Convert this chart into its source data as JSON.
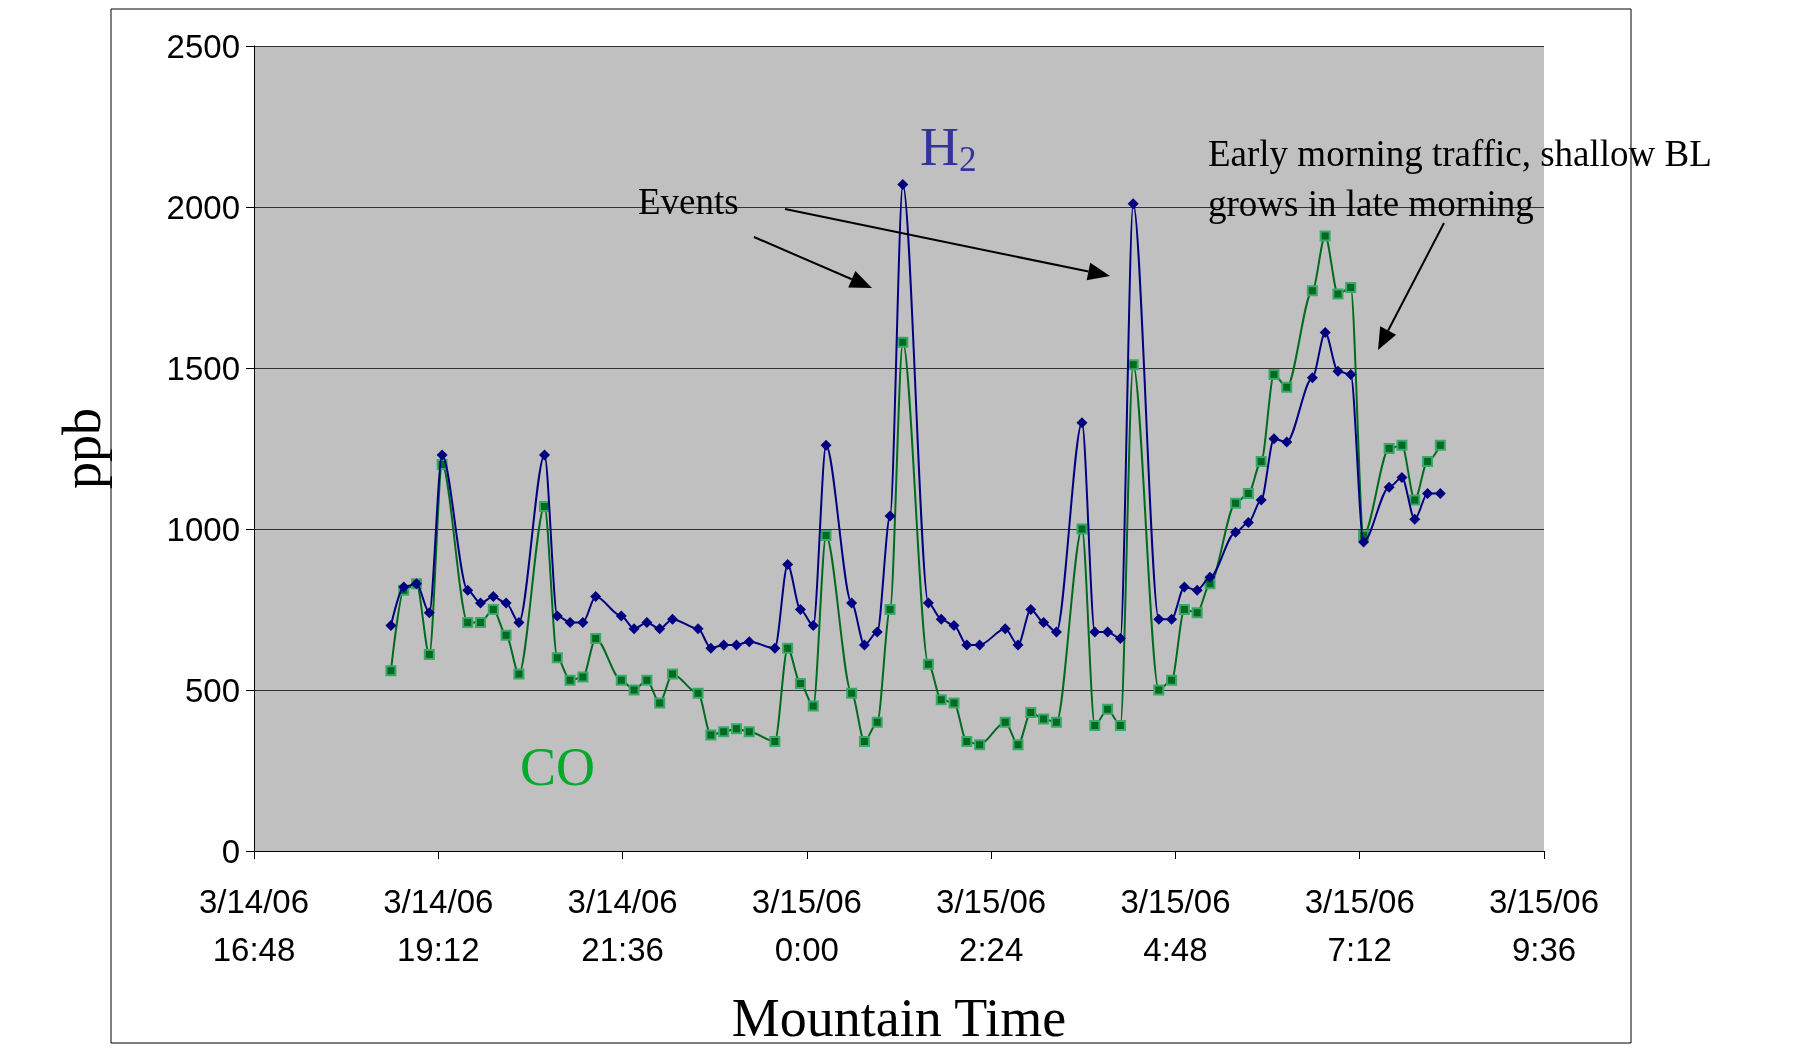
{
  "chart_data": {
    "type": "line",
    "xlabel": "Mountain Time",
    "ylabel": "ppb",
    "annotations": [
      "Events",
      "Early morning traffic, shallow BL grows in late morning"
    ],
    "x": [
      "--03-14T18:35",
      "--03-14T18:45",
      "--03-14T18:55",
      "--03-14T19:05",
      "--03-14T19:15",
      "--03-14T19:35",
      "--03-14T19:45",
      "--03-14T19:55",
      "--03-14T20:05",
      "--03-14T20:15",
      "--03-14T20:35",
      "--03-14T20:45",
      "--03-14T20:55",
      "--03-14T21:05",
      "--03-14T21:15",
      "--03-14T21:35",
      "--03-14T21:45",
      "--03-14T21:55",
      "--03-14T22:05",
      "--03-14T22:15",
      "--03-14T22:35",
      "--03-14T22:45",
      "--03-14T22:55",
      "--03-14T23:05",
      "--03-14T23:15",
      "--03-14T23:35",
      "--03-14T23:45",
      "--03-14T23:55",
      "--03-15T00:05",
      "--03-15T00:15",
      "--03-15T00:35",
      "--03-15T00:45",
      "--03-15T00:55",
      "--03-15T01:05",
      "--03-15T01:15",
      "--03-15T01:35",
      "--03-15T01:45",
      "--03-15T01:55",
      "--03-15T02:05",
      "--03-15T02:15",
      "--03-15T02:35",
      "--03-15T02:45",
      "--03-15T02:55",
      "--03-15T03:05",
      "--03-15T03:15",
      "--03-15T03:35",
      "--03-15T03:45",
      "--03-15T03:55",
      "--03-15T04:05",
      "--03-15T04:15",
      "--03-15T04:35",
      "--03-15T04:45",
      "--03-15T04:55",
      "--03-15T05:05",
      "--03-15T05:15",
      "--03-15T05:35",
      "--03-15T05:45",
      "--03-15T05:55",
      "--03-15T06:05",
      "--03-15T06:15",
      "--03-15T06:35",
      "--03-15T06:45",
      "--03-15T06:55",
      "--03-15T07:05",
      "--03-15T07:15",
      "--03-15T07:35",
      "--03-15T07:45",
      "--03-15T07:55",
      "--03-15T08:05",
      "--03-15T08:15"
    ],
    "series": [
      {
        "name": "H$_{2}$",
        "color": "#000080",
        "marker": "diamond",
        "values": [
          700,
          820,
          830,
          740,
          1230,
          810,
          770,
          790,
          770,
          710,
          1230,
          730,
          710,
          710,
          790,
          730,
          690,
          710,
          690,
          720,
          690,
          630,
          640,
          640,
          650,
          630,
          890,
          750,
          700,
          1260,
          770,
          640,
          680,
          1040,
          2070,
          770,
          720,
          700,
          640,
          640,
          690,
          640,
          750,
          710,
          680,
          1330,
          680,
          680,
          660,
          2010,
          720,
          720,
          820,
          810,
          850,
          990,
          1020,
          1090,
          1280,
          1270,
          1470,
          1610,
          1490,
          1480,
          960,
          1130,
          1160,
          1030,
          1110,
          1110
        ]
      },
      {
        "name": "CO",
        "color": "#006a1e",
        "marker": "square",
        "values": [
          560,
          810,
          830,
          610,
          1200,
          710,
          710,
          750,
          670,
          550,
          1070,
          600,
          530,
          540,
          660,
          530,
          500,
          530,
          460,
          550,
          490,
          360,
          370,
          380,
          370,
          340,
          630,
          520,
          450,
          980,
          490,
          340,
          400,
          750,
          1580,
          580,
          470,
          460,
          340,
          330,
          400,
          330,
          430,
          410,
          400,
          1000,
          390,
          440,
          390,
          1510,
          500,
          530,
          750,
          740,
          830,
          1080,
          1110,
          1210,
          1480,
          1440,
          1740,
          1910,
          1730,
          1750,
          980,
          1250,
          1260,
          1090,
          1210,
          1260
        ]
      }
    ],
    "xlim": [
      "--03-14T16:48",
      "--03-15T09:36"
    ],
    "xticks": [
      {
        "value": "--03-14T16:48",
        "label": "3/14/06\n16:48"
      },
      {
        "value": "--03-14T19:12",
        "label": "3/14/06\n19:12"
      },
      {
        "value": "--03-14T21:36",
        "label": "3/14/06\n21:36"
      },
      {
        "value": "--03-15T00:00",
        "label": "3/15/06\n0:00"
      },
      {
        "value": "--03-15T02:24",
        "label": "3/15/06\n2:24"
      },
      {
        "value": "--03-15T04:48",
        "label": "3/15/06\n4:48"
      },
      {
        "value": "--03-15T07:12",
        "label": "3/15/06\n7:12"
      },
      {
        "value": "--03-15T09:36",
        "label": "3/15/06\n9:36"
      }
    ],
    "ylim": [
      0,
      2500
    ],
    "yticks": [
      0,
      500,
      1000,
      1500,
      2000,
      2500
    ],
    "grid": "y"
  }
}
